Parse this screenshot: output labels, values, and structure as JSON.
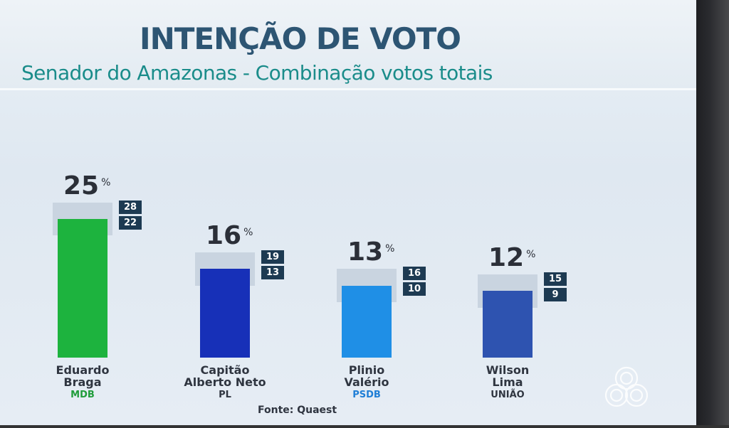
{
  "header": {
    "title": "INTENÇÃO DE VOTO",
    "subtitle": "Senador do Amazonas - Combinação votos totais"
  },
  "footer": {
    "source": "Fonte: Quaest"
  },
  "chart_data": {
    "type": "bar",
    "title": "INTENÇÃO DE VOTO",
    "subtitle": "Senador do Amazonas - Combinação votos totais",
    "unit": "%",
    "categories": [
      "Eduardo Braga",
      "Capitão Alberto Neto",
      "Plinio Valério",
      "Wilson Lima"
    ],
    "candidates": [
      {
        "name_line1": "Eduardo",
        "name_line2": "Braga",
        "party": "MDB",
        "value": 25,
        "upper": 28,
        "lower": 22,
        "color": "#1db33e",
        "party_color": "#1f9c3a"
      },
      {
        "name_line1": "Capitão",
        "name_line2": "Alberto Neto",
        "party": "PL",
        "value": 16,
        "upper": 19,
        "lower": 13,
        "color": "#1730b8",
        "party_color": "#2f3540"
      },
      {
        "name_line1": "Plinio",
        "name_line2": "Valério",
        "party": "PSDB",
        "value": 13,
        "upper": 16,
        "lower": 10,
        "color": "#1f8fe6",
        "party_color": "#1f7ed6"
      },
      {
        "name_line1": "Wilson",
        "name_line2": "Lima",
        "party": "UNIÃO",
        "value": 12,
        "upper": 15,
        "lower": 9,
        "color": "#2e53b0",
        "party_color": "#2f3540"
      }
    ],
    "pct_symbol": "%"
  }
}
